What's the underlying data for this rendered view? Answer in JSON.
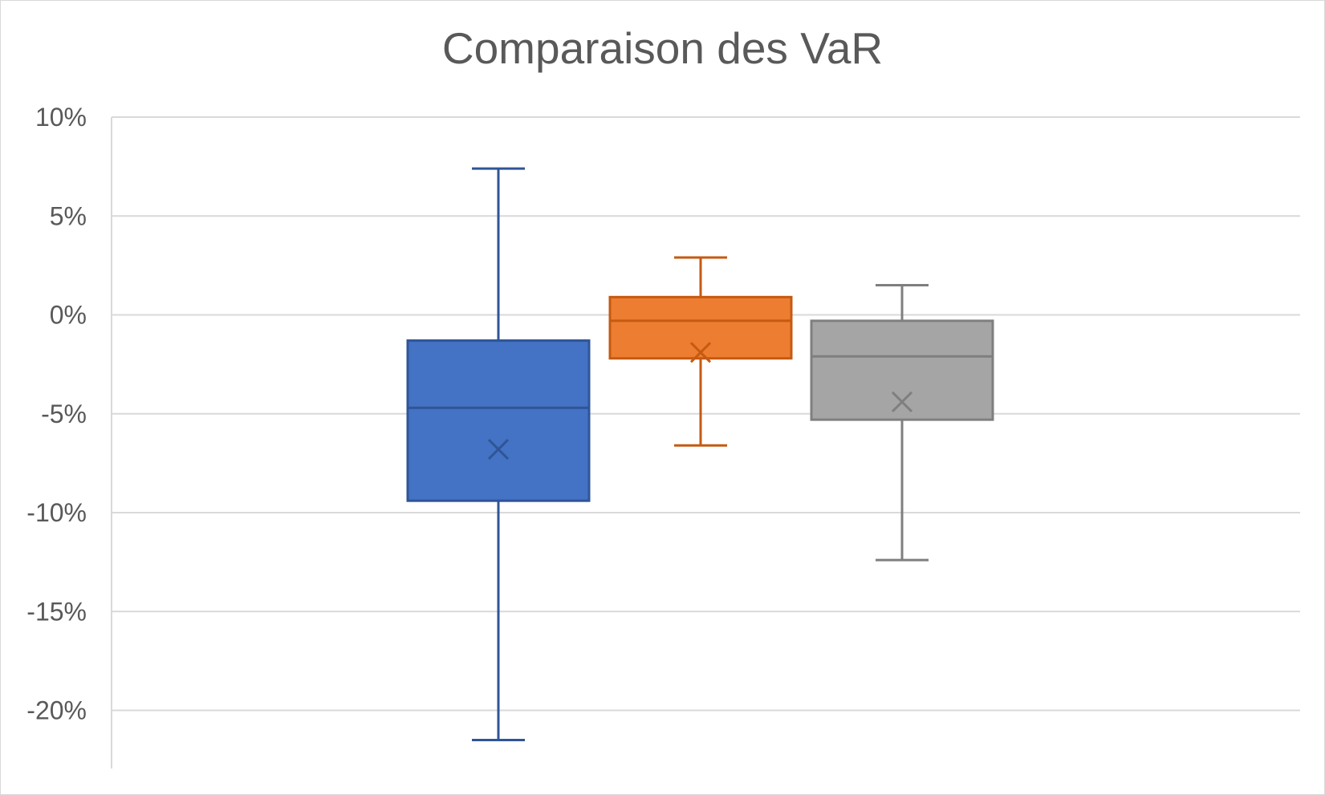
{
  "chart_data": {
    "type": "box",
    "title": "Comparaison des VaR",
    "xlabel": "",
    "ylabel": "",
    "ylim": [
      -0.22,
      0.1
    ],
    "yticks": [
      0.1,
      0.05,
      0.0,
      -0.05,
      -0.1,
      -0.15,
      -0.2
    ],
    "ytick_labels": [
      "10%",
      "5%",
      "0%",
      "-5%",
      "-10%",
      "-15%",
      "-20%"
    ],
    "grid": true,
    "legend": "none",
    "series": [
      {
        "color": "#4472c4",
        "edge_color": "#2f5597",
        "min": -0.215,
        "q1": -0.094,
        "median": -0.047,
        "q3": -0.013,
        "max": 0.074,
        "mean": -0.068
      },
      {
        "color": "#ed7d31",
        "edge_color": "#c55a11",
        "min": -0.066,
        "q1": -0.022,
        "median": -0.003,
        "q3": 0.009,
        "max": 0.029,
        "mean": -0.019
      },
      {
        "color": "#a5a5a5",
        "edge_color": "#7f7f7f",
        "min": -0.124,
        "q1": -0.053,
        "median": -0.021,
        "q3": -0.003,
        "max": 0.015,
        "mean": -0.044
      }
    ]
  }
}
